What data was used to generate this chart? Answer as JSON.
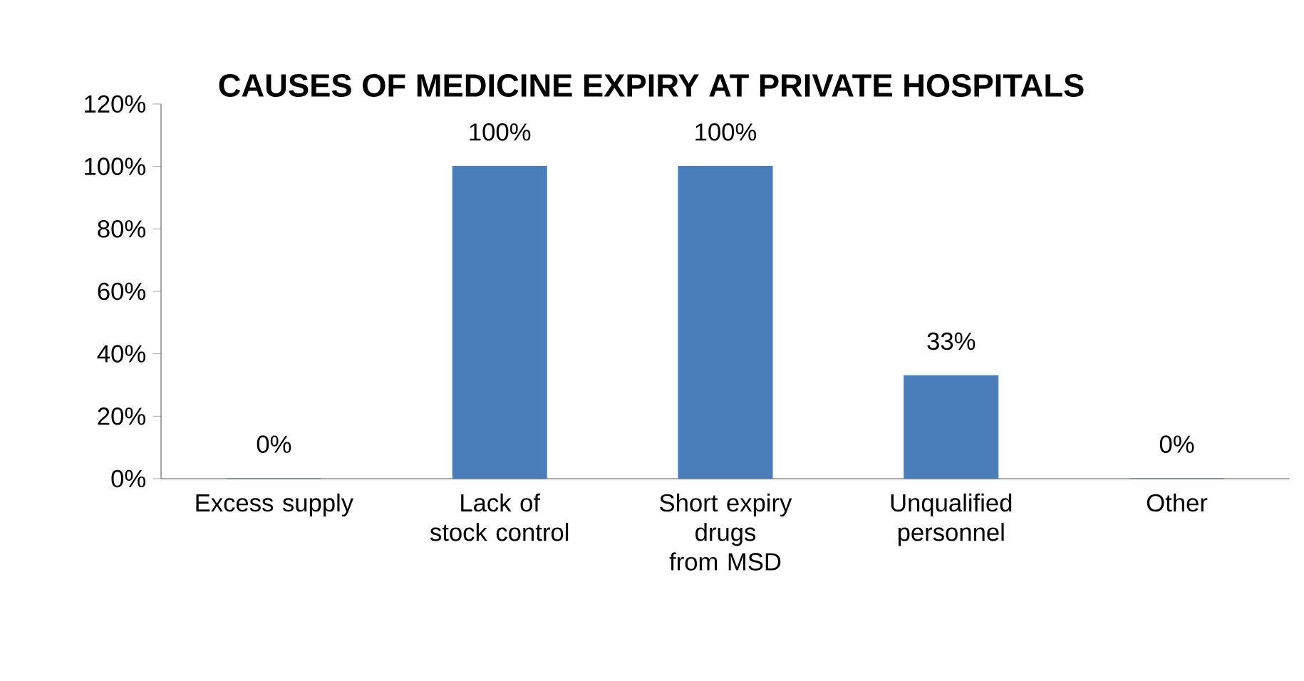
{
  "chart_data": {
    "type": "bar",
    "title": "CAUSES OF MEDICINE EXPIRY AT PRIVATE HOSPITALS",
    "categories": [
      "Excess supply",
      "Lack of stock control",
      "Short expiry drugs from MSD",
      "Unqualified personnel",
      "Other"
    ],
    "values": [
      0,
      100,
      100,
      33,
      0
    ],
    "value_labels": [
      "0%",
      "100%",
      "100%",
      "33%",
      "0%"
    ],
    "color": "#4a7ebb",
    "ylim": [
      0,
      120
    ],
    "yticks": [
      {
        "value": 0,
        "label": "0%"
      },
      {
        "value": 20,
        "label": "20%"
      },
      {
        "value": 40,
        "label": "40%"
      },
      {
        "value": 60,
        "label": "60%"
      },
      {
        "value": 80,
        "label": "80%"
      },
      {
        "value": 100,
        "label": "100%"
      },
      {
        "value": 120,
        "label": "120%"
      }
    ]
  }
}
